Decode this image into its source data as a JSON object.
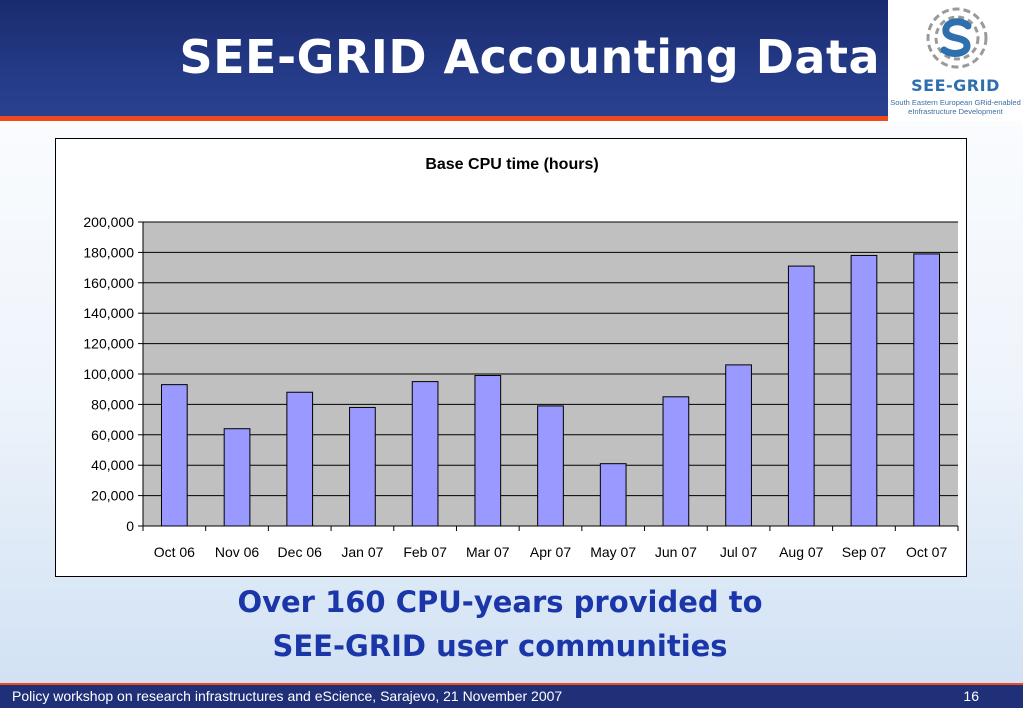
{
  "slide": {
    "title": "SEE-GRID Accounting Data",
    "caption_line1": "Over 160 CPU-years provided to",
    "caption_line2": "SEE-GRID user communities"
  },
  "logo": {
    "name": "SEE-GRID",
    "subtitle": "South Eastern European GRid-enabled eInfrastructure Development",
    "icon": "see-grid-swirl-logo"
  },
  "footer": {
    "text": "Policy workshop on research infrastructures and eScience, Sarajevo, 21 November 2007",
    "page_number": "16"
  },
  "colors": {
    "header": "#243a86",
    "accent_rule": "#f04a1c",
    "bar_fill": "#9999ff",
    "plot_bg": "#c0c0c0",
    "caption": "#1a36a8"
  },
  "chart_data": {
    "type": "bar",
    "title": "Base CPU time (hours)",
    "xlabel": "",
    "ylabel": "",
    "categories": [
      "Oct 06",
      "Nov 06",
      "Dec 06",
      "Jan 07",
      "Feb 07",
      "Mar 07",
      "Apr 07",
      "May 07",
      "Jun 07",
      "Jul 07",
      "Aug 07",
      "Sep 07",
      "Oct 07"
    ],
    "values": [
      93000,
      64000,
      88000,
      78000,
      95000,
      99000,
      79000,
      41000,
      85000,
      106000,
      171000,
      178000,
      179000
    ],
    "ylim": [
      0,
      200000
    ],
    "yticks": [
      0,
      20000,
      40000,
      60000,
      80000,
      100000,
      120000,
      140000,
      160000,
      180000,
      200000
    ],
    "ytick_labels": [
      "0",
      "20,000",
      "40,000",
      "60,000",
      "80,000",
      "100,000",
      "120,000",
      "140,000",
      "160,000",
      "180,000",
      "200,000"
    ],
    "grid": true,
    "legend": "none"
  }
}
